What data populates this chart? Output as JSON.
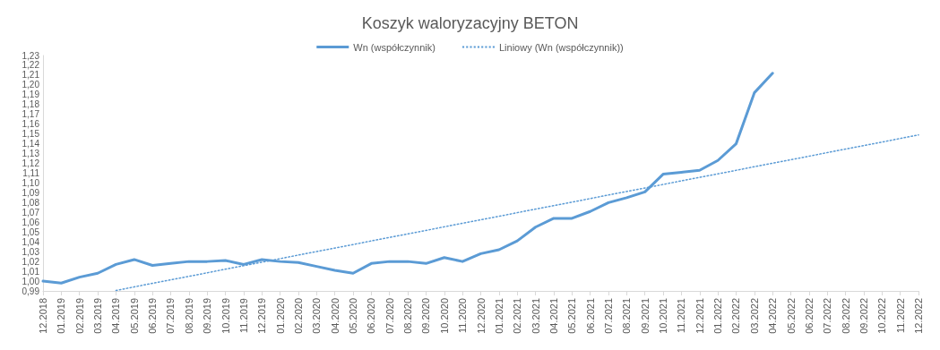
{
  "chart_data": {
    "type": "line",
    "title": "Koszyk waloryzacyjny BETON",
    "categories": [
      "12.2018",
      "01.2019",
      "02.2019",
      "03.2019",
      "04.2019",
      "05.2019",
      "06.2019",
      "07.2019",
      "08.2019",
      "09.2019",
      "10.2019",
      "11.2019",
      "12.2019",
      "01.2020",
      "02.2020",
      "03.2020",
      "04.2020",
      "05.2020",
      "06.2020",
      "07.2020",
      "08.2020",
      "09.2020",
      "10.2020",
      "11.2020",
      "12.2020",
      "01.2021",
      "02.2021",
      "03.2021",
      "04.2021",
      "05.2021",
      "06.2021",
      "07.2021",
      "08.2021",
      "09.2021",
      "10.2021",
      "11.2021",
      "12.2021",
      "01.2022",
      "02.2022",
      "03.2022",
      "04.2022",
      "05.2022",
      "06.2022",
      "07.2022",
      "08.2022",
      "09.2022",
      "10.2022",
      "11.2022",
      "12.2022"
    ],
    "series": [
      {
        "name": "Wn (współczynnik)",
        "color": "#5b9bd5",
        "line_style": "solid",
        "values": [
          1.0,
          0.998,
          1.004,
          1.008,
          1.017,
          1.022,
          1.016,
          1.018,
          1.02,
          1.02,
          1.021,
          1.017,
          1.022,
          1.02,
          1.019,
          1.015,
          1.011,
          1.008,
          1.018,
          1.02,
          1.02,
          1.018,
          1.024,
          1.02,
          1.028,
          1.032,
          1.041,
          1.055,
          1.064,
          1.064,
          1.071,
          1.08,
          1.085,
          1.091,
          1.109,
          1.111,
          1.113,
          1.123,
          1.14,
          1.192,
          1.212,
          null,
          null,
          null,
          null,
          null,
          null,
          null,
          null
        ]
      },
      {
        "name": "Liniowy (Wn (współczynnik))",
        "color": "#5b9bd5",
        "line_style": "dotted",
        "x": [
          "04.2019",
          "12.2022"
        ],
        "values": [
          0.9905,
          1.149
        ]
      }
    ],
    "ylim": [
      0.99,
      1.23
    ],
    "yticks": [
      {
        "value": 0.99,
        "label": "0,99"
      },
      {
        "value": 1.0,
        "label": "1,00"
      },
      {
        "value": 1.01,
        "label": "1,01"
      },
      {
        "value": 1.02,
        "label": "1,02"
      },
      {
        "value": 1.03,
        "label": "1,03"
      },
      {
        "value": 1.04,
        "label": "1,04"
      },
      {
        "value": 1.05,
        "label": "1,05"
      },
      {
        "value": 1.06,
        "label": "1,06"
      },
      {
        "value": 1.07,
        "label": "1,07"
      },
      {
        "value": 1.08,
        "label": "1,08"
      },
      {
        "value": 1.09,
        "label": "1,09"
      },
      {
        "value": 1.1,
        "label": "1,10"
      },
      {
        "value": 1.11,
        "label": "1,11"
      },
      {
        "value": 1.12,
        "label": "1,12"
      },
      {
        "value": 1.13,
        "label": "1,13"
      },
      {
        "value": 1.14,
        "label": "1,14"
      },
      {
        "value": 1.15,
        "label": "1,15"
      },
      {
        "value": 1.16,
        "label": "1,16"
      },
      {
        "value": 1.17,
        "label": "1,17"
      },
      {
        "value": 1.18,
        "label": "1,18"
      },
      {
        "value": 1.19,
        "label": "1,19"
      },
      {
        "value": 1.2,
        "label": "1,20"
      },
      {
        "value": 1.21,
        "label": "1,21"
      },
      {
        "value": 1.22,
        "label": "1,22"
      },
      {
        "value": 1.23,
        "label": "1,23"
      }
    ],
    "grid": false,
    "legend": "top",
    "marker": "none"
  }
}
